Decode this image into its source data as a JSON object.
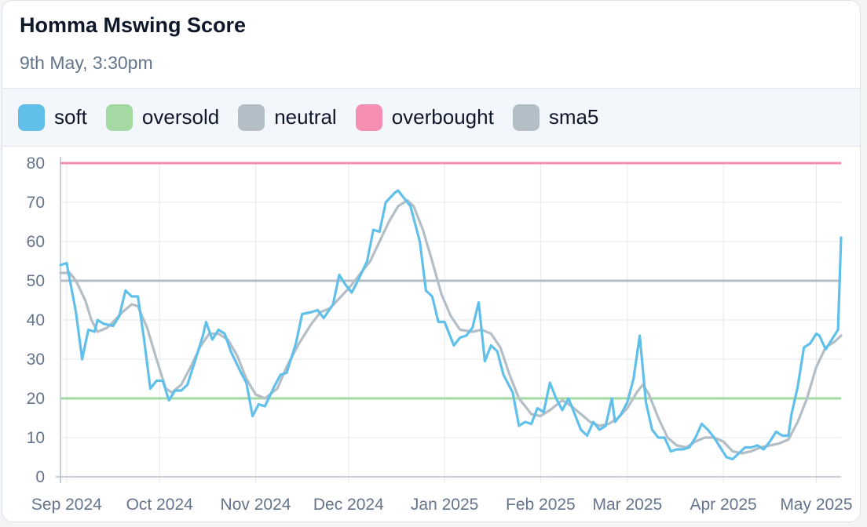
{
  "header": {
    "title": "Homma Mswing Score",
    "subtitle": "9th May, 3:30pm"
  },
  "legend": [
    {
      "label": "soft",
      "color": "#60c0ea"
    },
    {
      "label": "oversold",
      "color": "#a4d9a4"
    },
    {
      "label": "neutral",
      "color": "#b4bec6"
    },
    {
      "label": "overbought",
      "color": "#f48fb1"
    },
    {
      "label": "sma5",
      "color": "#b4bec6"
    }
  ],
  "chart_data": {
    "type": "line",
    "title": "Homma Mswing Score",
    "xlabel": "",
    "ylabel": "",
    "ylim": [
      0,
      80
    ],
    "yticks": [
      "0",
      "10",
      "20",
      "30",
      "40",
      "50",
      "60",
      "70",
      "80"
    ],
    "xticks": [
      {
        "label": "Sep 2024",
        "date": "2024-09-01"
      },
      {
        "label": "Oct 2024",
        "date": "2024-10-01"
      },
      {
        "label": "Nov 2024",
        "date": "2024-11-01"
      },
      {
        "label": "Dec 2024",
        "date": "2024-12-01"
      },
      {
        "label": "Jan 2025",
        "date": "2025-01-01"
      },
      {
        "label": "Feb 2025",
        "date": "2025-02-01"
      },
      {
        "label": "Mar 2025",
        "date": "2025-03-01"
      },
      {
        "label": "Apr 2025",
        "date": "2025-04-01"
      },
      {
        "label": "May 2025",
        "date": "2025-05-01"
      }
    ],
    "x_range": [
      "2024-08-30",
      "2025-05-09"
    ],
    "grid": true,
    "legend_position": "top",
    "reference_lines": [
      {
        "name": "oversold",
        "value": 20,
        "color": "#a4d9a4"
      },
      {
        "name": "neutral",
        "value": 50,
        "color": "#b4bec6"
      },
      {
        "name": "overbought",
        "value": 80,
        "color": "#f48fb1"
      }
    ],
    "series": [
      {
        "name": "soft",
        "color": "#60c0ea",
        "points": [
          [
            "2024-08-30",
            54
          ],
          [
            "2024-09-01",
            54.5
          ],
          [
            "2024-09-04",
            42
          ],
          [
            "2024-09-06",
            30
          ],
          [
            "2024-09-08",
            37.5
          ],
          [
            "2024-09-10",
            37
          ],
          [
            "2024-09-11",
            40
          ],
          [
            "2024-09-13",
            39
          ],
          [
            "2024-09-16",
            38.5
          ],
          [
            "2024-09-18",
            41
          ],
          [
            "2024-09-20",
            47.5
          ],
          [
            "2024-09-22",
            46
          ],
          [
            "2024-09-24",
            46
          ],
          [
            "2024-09-26",
            35
          ],
          [
            "2024-09-28",
            22.5
          ],
          [
            "2024-09-30",
            24.5
          ],
          [
            "2024-10-02",
            24.5
          ],
          [
            "2024-10-04",
            19.5
          ],
          [
            "2024-10-06",
            22
          ],
          [
            "2024-10-08",
            22
          ],
          [
            "2024-10-10",
            23.5
          ],
          [
            "2024-10-13",
            31
          ],
          [
            "2024-10-15",
            36
          ],
          [
            "2024-10-16",
            39.5
          ],
          [
            "2024-10-18",
            35
          ],
          [
            "2024-10-20",
            37.5
          ],
          [
            "2024-10-22",
            36.5
          ],
          [
            "2024-10-24",
            32
          ],
          [
            "2024-10-27",
            27
          ],
          [
            "2024-10-29",
            24
          ],
          [
            "2024-10-31",
            15.5
          ],
          [
            "2024-11-02",
            18.5
          ],
          [
            "2024-11-04",
            18
          ],
          [
            "2024-11-07",
            23
          ],
          [
            "2024-11-09",
            26
          ],
          [
            "2024-11-11",
            26.5
          ],
          [
            "2024-11-14",
            34
          ],
          [
            "2024-11-16",
            41.5
          ],
          [
            "2024-11-19",
            42
          ],
          [
            "2024-11-21",
            42.5
          ],
          [
            "2024-11-23",
            40.5
          ],
          [
            "2024-11-26",
            44
          ],
          [
            "2024-11-28",
            51.5
          ],
          [
            "2024-11-30",
            49
          ],
          [
            "2024-12-02",
            47
          ],
          [
            "2024-12-04",
            50
          ],
          [
            "2024-12-07",
            55
          ],
          [
            "2024-12-09",
            63
          ],
          [
            "2024-12-11",
            62.5
          ],
          [
            "2024-12-13",
            70
          ],
          [
            "2024-12-16",
            72.5
          ],
          [
            "2024-12-17",
            73
          ],
          [
            "2024-12-20",
            70
          ],
          [
            "2024-12-21",
            69
          ],
          [
            "2024-12-24",
            60
          ],
          [
            "2024-12-26",
            47.5
          ],
          [
            "2024-12-28",
            46
          ],
          [
            "2024-12-30",
            39.5
          ],
          [
            "2025-01-01",
            39.5
          ],
          [
            "2025-01-04",
            33.5
          ],
          [
            "2025-01-06",
            35.5
          ],
          [
            "2025-01-08",
            36
          ],
          [
            "2025-01-10",
            38
          ],
          [
            "2025-01-12",
            44.5
          ],
          [
            "2025-01-14",
            29.5
          ],
          [
            "2025-01-16",
            33.5
          ],
          [
            "2025-01-18",
            32
          ],
          [
            "2025-01-20",
            26
          ],
          [
            "2025-01-23",
            21.5
          ],
          [
            "2025-01-25",
            13
          ],
          [
            "2025-01-27",
            14
          ],
          [
            "2025-01-29",
            13.5
          ],
          [
            "2025-01-31",
            17.5
          ],
          [
            "2025-02-02",
            16.5
          ],
          [
            "2025-02-04",
            24
          ],
          [
            "2025-02-06",
            20
          ],
          [
            "2025-02-08",
            17
          ],
          [
            "2025-02-10",
            20
          ],
          [
            "2025-02-12",
            16
          ],
          [
            "2025-02-14",
            12
          ],
          [
            "2025-02-16",
            10.5
          ],
          [
            "2025-02-18",
            14
          ],
          [
            "2025-02-20",
            12
          ],
          [
            "2025-02-22",
            13
          ],
          [
            "2025-02-24",
            20
          ],
          [
            "2025-02-25",
            14
          ],
          [
            "2025-02-27",
            16
          ],
          [
            "2025-03-01",
            19
          ],
          [
            "2025-03-03",
            25
          ],
          [
            "2025-03-05",
            36
          ],
          [
            "2025-03-07",
            19
          ],
          [
            "2025-03-09",
            12
          ],
          [
            "2025-03-11",
            10
          ],
          [
            "2025-03-13",
            10
          ],
          [
            "2025-03-15",
            6.5
          ],
          [
            "2025-03-17",
            7
          ],
          [
            "2025-03-19",
            7
          ],
          [
            "2025-03-21",
            7.5
          ],
          [
            "2025-03-23",
            10
          ],
          [
            "2025-03-25",
            13.5
          ],
          [
            "2025-03-27",
            12
          ],
          [
            "2025-03-29",
            10
          ],
          [
            "2025-03-31",
            7.5
          ],
          [
            "2025-04-02",
            5
          ],
          [
            "2025-04-04",
            4.5
          ],
          [
            "2025-04-06",
            6
          ],
          [
            "2025-04-08",
            7.5
          ],
          [
            "2025-04-10",
            7.5
          ],
          [
            "2025-04-12",
            8
          ],
          [
            "2025-04-14",
            7
          ],
          [
            "2025-04-16",
            9
          ],
          [
            "2025-04-18",
            11.5
          ],
          [
            "2025-04-20",
            10.5
          ],
          [
            "2025-04-22",
            10.5
          ],
          [
            "2025-04-23",
            16
          ],
          [
            "2025-04-25",
            23
          ],
          [
            "2025-04-27",
            33
          ],
          [
            "2025-04-29",
            34
          ],
          [
            "2025-05-01",
            36.5
          ],
          [
            "2025-05-02",
            36
          ],
          [
            "2025-05-04",
            32.5
          ],
          [
            "2025-05-06",
            35
          ],
          [
            "2025-05-08",
            37.5
          ],
          [
            "2025-05-09",
            61
          ]
        ]
      },
      {
        "name": "sma5",
        "color": "#b4bec6",
        "points": [
          [
            "2024-08-30",
            52
          ],
          [
            "2024-09-02",
            52
          ],
          [
            "2024-09-04",
            50
          ],
          [
            "2024-09-07",
            45
          ],
          [
            "2024-09-09",
            40
          ],
          [
            "2024-09-11",
            37
          ],
          [
            "2024-09-14",
            38
          ],
          [
            "2024-09-16",
            39.5
          ],
          [
            "2024-09-19",
            42
          ],
          [
            "2024-09-22",
            44
          ],
          [
            "2024-09-24",
            43.5
          ],
          [
            "2024-09-27",
            38
          ],
          [
            "2024-09-30",
            30
          ],
          [
            "2024-10-03",
            22.5
          ],
          [
            "2024-10-05",
            21.5
          ],
          [
            "2024-10-08",
            23.5
          ],
          [
            "2024-10-11",
            28
          ],
          [
            "2024-10-14",
            33
          ],
          [
            "2024-10-17",
            36.5
          ],
          [
            "2024-10-20",
            36.5
          ],
          [
            "2024-10-23",
            35
          ],
          [
            "2024-10-26",
            31
          ],
          [
            "2024-10-29",
            25
          ],
          [
            "2024-11-01",
            21
          ],
          [
            "2024-11-04",
            20
          ],
          [
            "2024-11-08",
            22.5
          ],
          [
            "2024-11-11",
            28
          ],
          [
            "2024-11-15",
            34
          ],
          [
            "2024-11-19",
            39
          ],
          [
            "2024-11-22",
            42
          ],
          [
            "2024-11-25",
            43
          ],
          [
            "2024-11-28",
            45.5
          ],
          [
            "2024-12-01",
            48
          ],
          [
            "2024-12-04",
            51
          ],
          [
            "2024-12-08",
            55
          ],
          [
            "2024-12-11",
            60
          ],
          [
            "2024-12-14",
            65
          ],
          [
            "2024-12-17",
            69
          ],
          [
            "2024-12-20",
            70.5
          ],
          [
            "2024-12-22",
            69
          ],
          [
            "2024-12-25",
            63
          ],
          [
            "2024-12-28",
            55
          ],
          [
            "2024-12-31",
            46.5
          ],
          [
            "2025-01-03",
            41
          ],
          [
            "2025-01-06",
            37.5
          ],
          [
            "2025-01-10",
            37
          ],
          [
            "2025-01-13",
            37.5
          ],
          [
            "2025-01-16",
            36.5
          ],
          [
            "2025-01-19",
            33
          ],
          [
            "2025-01-22",
            26
          ],
          [
            "2025-01-25",
            20
          ],
          [
            "2025-01-29",
            16
          ],
          [
            "2025-02-01",
            15.5
          ],
          [
            "2025-02-04",
            17
          ],
          [
            "2025-02-08",
            19.5
          ],
          [
            "2025-02-11",
            18
          ],
          [
            "2025-02-14",
            16
          ],
          [
            "2025-02-17",
            14
          ],
          [
            "2025-02-20",
            13
          ],
          [
            "2025-02-23",
            13.5
          ],
          [
            "2025-02-26",
            15
          ],
          [
            "2025-03-01",
            17.5
          ],
          [
            "2025-03-04",
            21.5
          ],
          [
            "2025-03-06",
            23.5
          ],
          [
            "2025-03-08",
            21
          ],
          [
            "2025-03-11",
            15
          ],
          [
            "2025-03-14",
            10
          ],
          [
            "2025-03-17",
            8
          ],
          [
            "2025-03-20",
            7.5
          ],
          [
            "2025-03-23",
            9
          ],
          [
            "2025-03-26",
            10
          ],
          [
            "2025-03-29",
            10
          ],
          [
            "2025-04-01",
            9
          ],
          [
            "2025-04-04",
            6.5
          ],
          [
            "2025-04-07",
            6
          ],
          [
            "2025-04-10",
            6.5
          ],
          [
            "2025-04-13",
            7.5
          ],
          [
            "2025-04-16",
            8
          ],
          [
            "2025-04-19",
            8.5
          ],
          [
            "2025-04-22",
            9.5
          ],
          [
            "2025-04-25",
            14
          ],
          [
            "2025-04-28",
            20
          ],
          [
            "2025-05-01",
            28
          ],
          [
            "2025-05-04",
            33
          ],
          [
            "2025-05-07",
            34.5
          ],
          [
            "2025-05-09",
            36
          ]
        ]
      }
    ]
  }
}
